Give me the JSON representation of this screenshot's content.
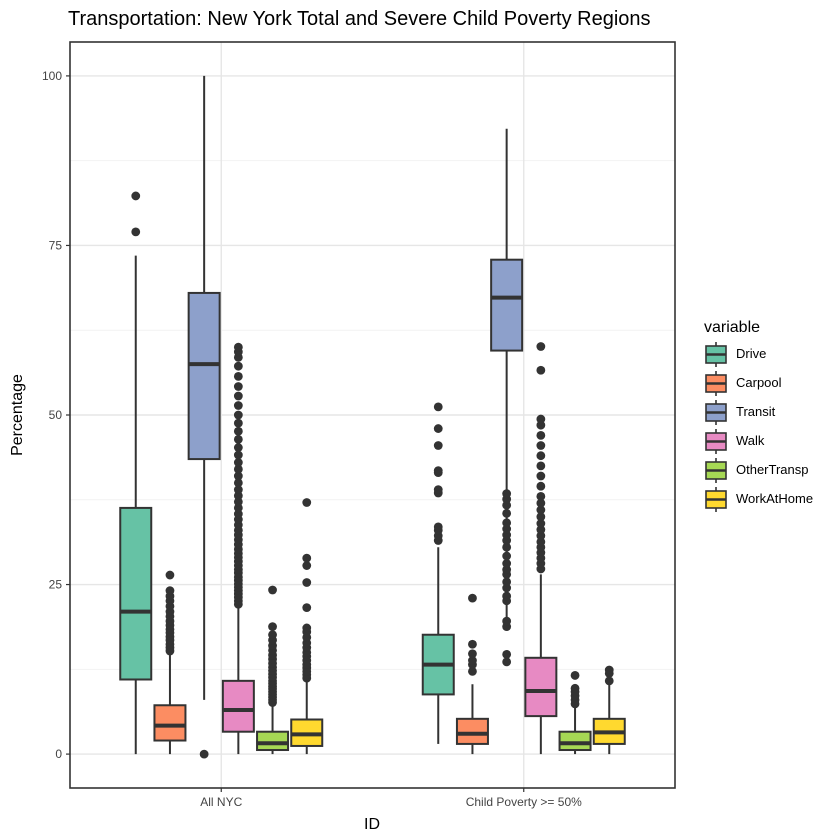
{
  "chart_data": {
    "type": "box",
    "title": "Transportation: New York Total and Severe Child Poverty Regions",
    "xlabel": "ID",
    "ylabel": "Percentage",
    "ylim": [
      -5,
      105
    ],
    "yticks": [
      0,
      25,
      50,
      75,
      100
    ],
    "grid": true,
    "legend_position": "right",
    "legend_title": "variable",
    "categories": [
      "All NYC",
      "Child Poverty >= 50%"
    ],
    "series": [
      {
        "name": "Drive",
        "color": "#66C2A5",
        "boxes": [
          {
            "whisker_low": 0,
            "q1": 11,
            "median": 21,
            "q3": 36.3,
            "whisker_high": 73.5,
            "outliers": [
              77,
              82.3
            ]
          },
          {
            "whisker_low": 1.5,
            "q1": 8.8,
            "median": 13.2,
            "q3": 17.6,
            "whisker_high": 30.5,
            "outliers": [
              31.5,
              32.2,
              33,
              33.5,
              38.5,
              39,
              41.5,
              41.8,
              45.5,
              48,
              51.2
            ]
          }
        ]
      },
      {
        "name": "Carpool",
        "color": "#FC8D62",
        "boxes": [
          {
            "whisker_low": 0,
            "q1": 2,
            "median": 4.2,
            "q3": 7.2,
            "whisker_high": 14.8,
            "outliers": [
              15.2,
              15.7,
              16.2,
              16.8,
              17.3,
              17.9,
              18.4,
              19,
              19.6,
              20.3,
              21,
              21.8,
              22.6,
              23.3,
              24.1,
              26.4
            ]
          },
          {
            "whisker_low": 0,
            "q1": 1.5,
            "median": 3,
            "q3": 5.2,
            "whisker_high": 10.3,
            "outliers": [
              12.2,
              13.2,
              13.8,
              14.8,
              16.2,
              23
            ]
          }
        ]
      },
      {
        "name": "Transit",
        "color": "#8DA0CB",
        "boxes": [
          {
            "whisker_low": 8,
            "q1": 43.5,
            "median": 57.5,
            "q3": 68,
            "whisker_high": 100,
            "outliers": [
              0
            ]
          },
          {
            "whisker_low": 18.5,
            "q1": 59.5,
            "median": 67.3,
            "q3": 72.9,
            "whisker_high": 92.2,
            "outliers": [
              13.6,
              14.7,
              18.8,
              19.6,
              22.6,
              23.3,
              24.5,
              25.4,
              26.5,
              27.2,
              28.1,
              29.2,
              30.5,
              31.5,
              32.3,
              33.2,
              34.1,
              35.5,
              36.7,
              37.6,
              38.4
            ]
          }
        ]
      },
      {
        "name": "Walk",
        "color": "#E78AC3",
        "boxes": [
          {
            "whisker_low": 0,
            "q1": 3.3,
            "median": 6.5,
            "q3": 10.8,
            "whisker_high": 21.8,
            "outliers": [
              22.1,
              22.6,
              23.1,
              23.6,
              24.1,
              24.6,
              25.1,
              25.6,
              26.1,
              26.7,
              27.2,
              27.8,
              28.4,
              29,
              29.6,
              30.2,
              30.9,
              31.6,
              32.3,
              33,
              33.8,
              34.6,
              35.4,
              36.3,
              37.2,
              38.1,
              39,
              40,
              41,
              42,
              43,
              44.1,
              45.2,
              46.4,
              47.6,
              48.8,
              50,
              51.4,
              52.8,
              54.2,
              55.7,
              57.2,
              58.5,
              59.3,
              60
            ]
          },
          {
            "whisker_low": 0,
            "q1": 5.6,
            "median": 9.3,
            "q3": 14.2,
            "whisker_high": 26.5,
            "outliers": [
              27.3,
              28.1,
              28.9,
              29.7,
              30.5,
              31.3,
              32.2,
              33.1,
              34,
              35,
              36,
              37,
              38,
              39.5,
              41,
              42.5,
              44,
              45.5,
              47,
              48.5,
              49.4,
              56.6,
              60.1
            ]
          }
        ]
      },
      {
        "name": "OtherTransp",
        "color": "#A6D854",
        "boxes": [
          {
            "whisker_low": 0,
            "q1": 0.6,
            "median": 1.6,
            "q3": 3.3,
            "whisker_high": 7.3,
            "outliers": [
              7.6,
              8,
              8.4,
              8.8,
              9.2,
              9.6,
              10,
              10.4,
              10.8,
              11.3,
              11.8,
              12.3,
              12.8,
              13.4,
              14,
              14.6,
              15.3,
              16,
              16.8,
              17.6,
              18.8,
              24.2
            ]
          },
          {
            "whisker_low": 0,
            "q1": 0.6,
            "median": 1.6,
            "q3": 3.3,
            "whisker_high": 6.8,
            "outliers": [
              7.4,
              8,
              8.6,
              9.2,
              9.7,
              11.6
            ]
          }
        ]
      },
      {
        "name": "WorkAtHome",
        "color": "#FFD92F",
        "boxes": [
          {
            "whisker_low": 0,
            "q1": 1.2,
            "median": 2.9,
            "q3": 5.1,
            "whisker_high": 10.8,
            "outliers": [
              11.2,
              11.7,
              12.2,
              12.7,
              13.2,
              13.8,
              14.4,
              15,
              15.7,
              16.4,
              17.2,
              18,
              18.6,
              21.6,
              25.3,
              27.8,
              28.9,
              37.1
            ]
          },
          {
            "whisker_low": 0,
            "q1": 1.5,
            "median": 3.2,
            "q3": 5.2,
            "whisker_high": 10.2,
            "outliers": [
              10.8,
              11.9,
              12.4
            ]
          }
        ]
      }
    ]
  }
}
